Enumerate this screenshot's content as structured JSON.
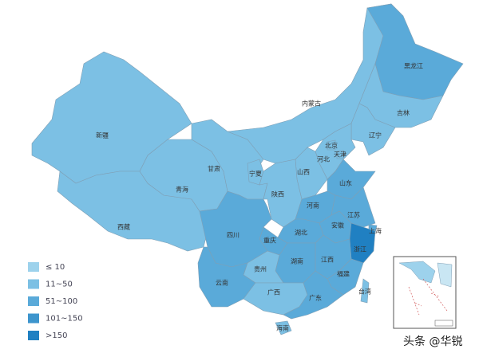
{
  "legend": [
    {
      "label": "≤ 10",
      "color": "#9dd2ec"
    },
    {
      "label": "11~50",
      "color": "#7cc0e4"
    },
    {
      "label": "51~100",
      "color": "#5aaad9"
    },
    {
      "label": "101~150",
      "color": "#3d95cd"
    },
    {
      "label": ">150",
      "color": "#2080c2"
    }
  ],
  "provinces": [
    {
      "name": "新疆",
      "level": 1
    },
    {
      "name": "西藏",
      "level": 1
    },
    {
      "name": "青海",
      "level": 1
    },
    {
      "name": "甘肃",
      "level": 1
    },
    {
      "name": "宁夏",
      "level": 1
    },
    {
      "name": "内蒙古",
      "level": 1
    },
    {
      "name": "黑龙江",
      "level": 2
    },
    {
      "name": "吉林",
      "level": 1
    },
    {
      "name": "辽宁",
      "level": 1
    },
    {
      "name": "河北",
      "level": 1
    },
    {
      "name": "北京",
      "level": 1
    },
    {
      "name": "天津",
      "level": 1
    },
    {
      "name": "山西",
      "level": 1
    },
    {
      "name": "陕西",
      "level": 1
    },
    {
      "name": "山东",
      "level": 2
    },
    {
      "name": "河南",
      "level": 2
    },
    {
      "name": "江苏",
      "level": 2
    },
    {
      "name": "安徽",
      "level": 2
    },
    {
      "name": "上海",
      "level": 2
    },
    {
      "name": "湖北",
      "level": 2
    },
    {
      "name": "重庆",
      "level": 2
    },
    {
      "name": "四川",
      "level": 2
    },
    {
      "name": "浙江",
      "level": 4
    },
    {
      "name": "江西",
      "level": 2
    },
    {
      "name": "湖南",
      "level": 2
    },
    {
      "name": "福建",
      "level": 2
    },
    {
      "name": "贵州",
      "level": 1
    },
    {
      "name": "云南",
      "level": 2
    },
    {
      "name": "广西",
      "level": 1
    },
    {
      "name": "广东",
      "level": 2
    },
    {
      "name": "台湾",
      "level": 1
    },
    {
      "name": "海南",
      "level": 1
    }
  ],
  "watermark": "头条 @华锐"
}
